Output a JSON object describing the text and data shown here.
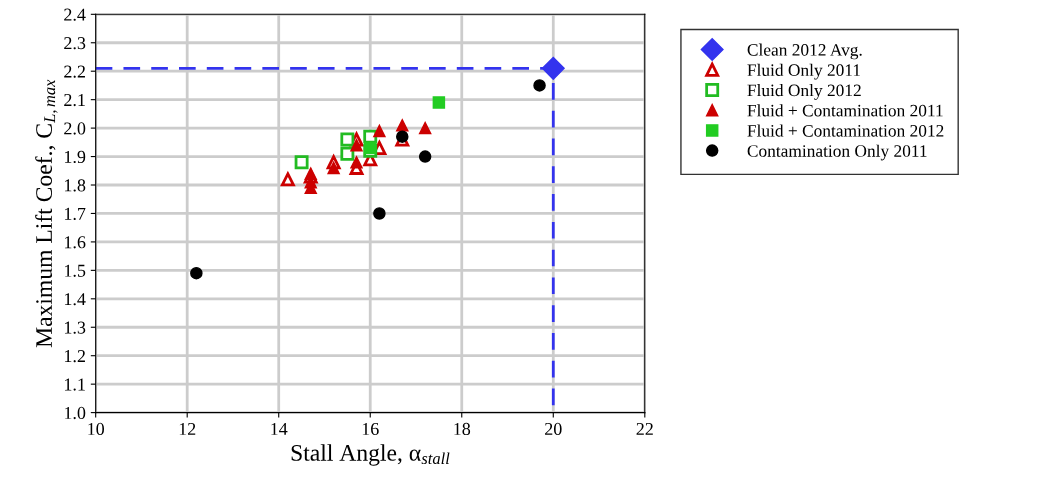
{
  "chart_data": {
    "type": "scatter",
    "xlabel": "Stall Angle, α$_{stall}$",
    "ylabel": "Maximum Lift Coef., C$_{L,max}$",
    "xlim": [
      10,
      22
    ],
    "xticks": [
      10,
      12,
      14,
      16,
      18,
      20,
      22
    ],
    "ylim": [
      1.0,
      2.4
    ],
    "yticks": [
      {
        "value": 1.0,
        "label": "1.0"
      },
      1.1,
      1.2,
      1.3,
      1.4,
      1.5,
      1.6,
      1.7,
      1.8,
      1.9,
      {
        "value": 2.0,
        "label": "2.0"
      },
      2.1,
      2.2,
      2.3,
      2.4
    ],
    "grid": true,
    "legend": "right",
    "series": [
      {
        "type": "line",
        "color": "#3333ee",
        "line_style": "dashed",
        "marker": "none",
        "x": [
          10,
          20,
          20
        ],
        "values": [
          2.21,
          2.21,
          1.0
        ]
      },
      {
        "name": "Clean 2012 Avg.",
        "color": "#3333ee",
        "marker": "diamond",
        "x": [
          20
        ],
        "values": [
          2.21
        ]
      },
      {
        "name": "Fluid Only 2011",
        "color": "#cc0000",
        "marker": "triangle-open",
        "x": [
          14.2,
          14.7,
          15.2,
          15.7,
          15.7,
          16.0,
          16.2,
          16.7
        ],
        "values": [
          1.82,
          1.83,
          1.88,
          1.86,
          1.96,
          1.89,
          1.93,
          1.96
        ]
      },
      {
        "name": "Fluid Only 2012",
        "color": "#22bb22",
        "marker": "square-open",
        "x": [
          14.5,
          15.5,
          15.5,
          16.0,
          16.0
        ],
        "values": [
          1.88,
          1.96,
          1.91,
          1.97,
          1.92
        ]
      },
      {
        "name": "Fluid + Contamination 2011",
        "color": "#cc0000",
        "marker": "triangle",
        "x": [
          14.7,
          14.7,
          14.7,
          15.2,
          15.7,
          15.7,
          16.2,
          16.7,
          17.2
        ],
        "values": [
          1.79,
          1.81,
          1.84,
          1.86,
          1.88,
          1.94,
          1.99,
          2.01,
          2.0
        ]
      },
      {
        "name": "Fluid + Contamination 2012",
        "color": "#22cc22",
        "marker": "square",
        "x": [
          16.0,
          17.5
        ],
        "values": [
          1.93,
          2.09
        ]
      },
      {
        "name": "Contamination Only 2011",
        "color": "#000000",
        "marker": "circle",
        "x": [
          12.2,
          16.2,
          16.7,
          17.2,
          19.7
        ],
        "values": [
          1.49,
          1.7,
          1.97,
          1.9,
          2.15
        ]
      }
    ]
  }
}
